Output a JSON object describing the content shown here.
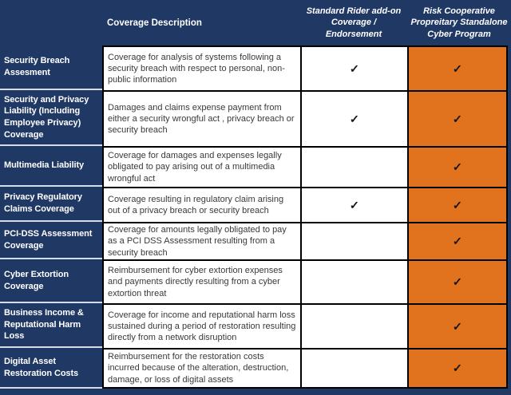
{
  "title": "Cyber coverage comparison table",
  "colors": {
    "navy": "#1F3864",
    "orange": "#E2731E",
    "label_separator": "#D6DCE5",
    "cell_border": "#000000",
    "description_text": "#3B3838",
    "header_text": "#FFFFFF"
  },
  "checkmark_glyph": "✓",
  "chart_data": {
    "type": "table",
    "columns": [
      "",
      "Coverage Description",
      "Standard Rider add-on Coverage / Endorsement",
      "Risk Cooperative Propreitary Standalone Cyber Program"
    ],
    "rows": [
      {
        "coverage": "Security Breach Assesment",
        "description": "Coverage for analysis of systems following a security breach with respect to personal, non-public information",
        "standard_rider": true,
        "risk_cooperative": true
      },
      {
        "coverage": "Security and Privacy Liability (Including Employee Privacy) Coverage",
        "description": "Damages and claims expense payment from either a security wrongful act , privacy breach or security breach",
        "standard_rider": true,
        "risk_cooperative": true
      },
      {
        "coverage": "Multimedia Liability",
        "description": "Coverage for damages and expenses legally obligated to pay arising out of a multimedia wrongful act",
        "standard_rider": false,
        "risk_cooperative": true
      },
      {
        "coverage": "Privacy Regulatory Claims Coverage",
        "description": "Coverage resulting in regulatory claim arising out of a privacy breach or security breach",
        "standard_rider": true,
        "risk_cooperative": true
      },
      {
        "coverage": "PCI-DSS Assessment Coverage",
        "description": "Coverage for amounts legally obligated to pay as a PCI DSS Assessment resulting from a security breach",
        "standard_rider": false,
        "risk_cooperative": true
      },
      {
        "coverage": "Cyber Extortion Coverage",
        "description": "Reimbursement for cyber extortion expenses and payments directly resulting from a cyber extortion threat",
        "standard_rider": false,
        "risk_cooperative": true
      },
      {
        "coverage": "Business Income & Reputational Harm Loss",
        "description": "Coverage for income and reputational harm loss sustained during a period of restoration resulting directly from a network disruption",
        "standard_rider": false,
        "risk_cooperative": true
      },
      {
        "coverage": "Digital Asset Restoration Costs",
        "description": "Reimbursement for the restoration costs incurred because of the alteration, destruction, damage, or loss of digital assets",
        "standard_rider": false,
        "risk_cooperative": true
      }
    ]
  }
}
